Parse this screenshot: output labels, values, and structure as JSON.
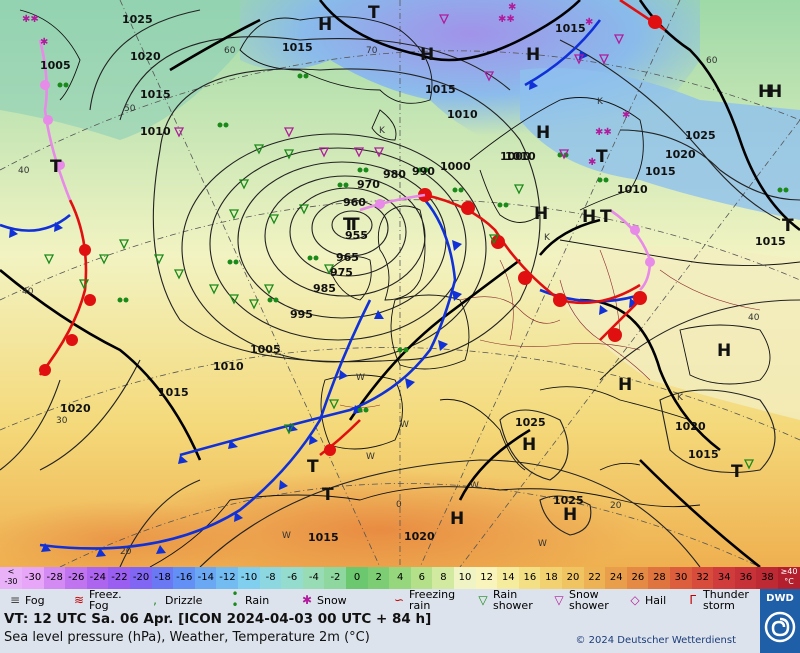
{
  "footer": {
    "valid_time": "VT: 12 UTC Sa.  06 Apr. [ICON 2024-04-03  00 UTC + 84 h]",
    "subtitle": "Sea level pressure (hPa), Weather, Temperature 2m (°C)",
    "copyright": "© 2024 Deutscher Wetterdienst",
    "logo_text": "DWD"
  },
  "legend": [
    {
      "label": "Fog",
      "icon": "fog-icon",
      "glyph": "≡",
      "color": "#444"
    },
    {
      "label": "Freez.\nFog",
      "icon": "freezing-fog-icon",
      "glyph": "≋",
      "color": "#c00000"
    },
    {
      "label": "Drizzle",
      "icon": "drizzle-icon",
      "glyph": ",",
      "color": "#1a8a1a"
    },
    {
      "label": "Rain",
      "icon": "rain-icon",
      "glyph": "• •",
      "color": "#1a8a1a"
    },
    {
      "label": "Snow",
      "icon": "snow-icon",
      "glyph": "✱",
      "color": "#b01c9c"
    },
    {
      "label": "Freezing\nrain",
      "icon": "freezing-rain-icon",
      "glyph": "∽",
      "color": "#c00000"
    },
    {
      "label": "Rain\nshower",
      "icon": "rain-shower-icon",
      "glyph": "▽",
      "color": "#1a8a1a"
    },
    {
      "label": "Snow\nshower",
      "icon": "snow-shower-icon",
      "glyph": "▽",
      "color": "#b01c9c"
    },
    {
      "label": "Hail",
      "icon": "hail-icon",
      "glyph": "◇",
      "color": "#b01c9c"
    },
    {
      "label": "Thunder\nstorm",
      "icon": "thunderstorm-icon",
      "glyph": "Г",
      "color": "#c00000"
    }
  ],
  "scale": {
    "low_label": "<\n-30",
    "high_label": "≥40\n°C",
    "values": [
      "-30",
      "-28",
      "-26",
      "-24",
      "-22",
      "-20",
      "-18",
      "-16",
      "-14",
      "-12",
      "-10",
      "-8",
      "-6",
      "-4",
      "-2",
      "0",
      "2",
      "4",
      "6",
      "8",
      "10",
      "12",
      "14",
      "16",
      "18",
      "20",
      "22",
      "24",
      "26",
      "28",
      "30",
      "32",
      "34",
      "36",
      "38"
    ],
    "colors": [
      "#e7a6f7",
      "#d38af2",
      "#c074ef",
      "#ad64ee",
      "#9a5ef0",
      "#8066f2",
      "#6a78f4",
      "#6290f4",
      "#6aa8f4",
      "#73bcf2",
      "#80cfee",
      "#8dd8e0",
      "#94dccd",
      "#98dcb6",
      "#8ed8a0",
      "#6bc86e",
      "#7ccd74",
      "#96d67c",
      "#b4e08a",
      "#d2eaa0",
      "#f0f4c4",
      "#f8f4bc",
      "#f6ec9e",
      "#f4e084",
      "#f2d270",
      "#f0c460",
      "#ecb254",
      "#e89e4a",
      "#e48a44",
      "#e0743e",
      "#dc5e3c",
      "#d84c3c",
      "#d03c3c",
      "#c63238",
      "#bd2a34"
    ]
  },
  "pressure_labels": [
    {
      "text": "1025"
    },
    {
      "text": "1005"
    },
    {
      "text": "1020"
    },
    {
      "text": "1015"
    },
    {
      "text": "1010"
    },
    {
      "text": "1015"
    },
    {
      "text": "1015"
    },
    {
      "text": "1010"
    },
    {
      "text": "1000"
    },
    {
      "text": "990"
    },
    {
      "text": "980"
    },
    {
      "text": "970"
    },
    {
      "text": "960"
    },
    {
      "text": "955"
    },
    {
      "text": "965"
    },
    {
      "text": "975"
    },
    {
      "text": "985"
    },
    {
      "text": "995"
    },
    {
      "text": "1005"
    },
    {
      "text": "1010"
    },
    {
      "text": "1015"
    },
    {
      "text": "1020"
    },
    {
      "text": "1000"
    },
    {
      "text": "1015"
    },
    {
      "text": "1010"
    },
    {
      "text": "1010"
    },
    {
      "text": "1025"
    },
    {
      "text": "1020"
    },
    {
      "text": "1015"
    },
    {
      "text": "1015"
    },
    {
      "text": "1025"
    },
    {
      "text": "1020"
    },
    {
      "text": "1015"
    },
    {
      "text": "1025"
    },
    {
      "text": "1020"
    },
    {
      "text": "1015"
    }
  ],
  "pressure_centers": [
    {
      "text": "H"
    },
    {
      "text": "T"
    },
    {
      "text": "H"
    },
    {
      "text": "H"
    },
    {
      "text": "H"
    },
    {
      "text": "T"
    },
    {
      "text": "T"
    },
    {
      "text": "H"
    },
    {
      "text": "H"
    },
    {
      "text": "T"
    },
    {
      "text": "T"
    },
    {
      "text": "H"
    },
    {
      "text": "H"
    },
    {
      "text": "H"
    },
    {
      "text": "H"
    },
    {
      "text": "H"
    },
    {
      "text": "T"
    },
    {
      "text": "T"
    },
    {
      "text": "T"
    },
    {
      "text": "T"
    },
    {
      "text": "H"
    },
    {
      "text": "H"
    },
    {
      "text": "T"
    }
  ],
  "temp_labels": [
    {
      "text": "60"
    },
    {
      "text": "50"
    },
    {
      "text": "40"
    },
    {
      "text": "40"
    },
    {
      "text": "30"
    },
    {
      "text": "20"
    },
    {
      "text": "70"
    },
    {
      "text": "60"
    },
    {
      "text": "0"
    },
    {
      "text": "20"
    },
    {
      "text": "40"
    },
    {
      "text": "K"
    },
    {
      "text": "K"
    },
    {
      "text": "K"
    },
    {
      "text": "K"
    },
    {
      "text": "W"
    },
    {
      "text": "W"
    },
    {
      "text": "W"
    },
    {
      "text": "W"
    },
    {
      "text": "W"
    },
    {
      "text": "W"
    }
  ]
}
